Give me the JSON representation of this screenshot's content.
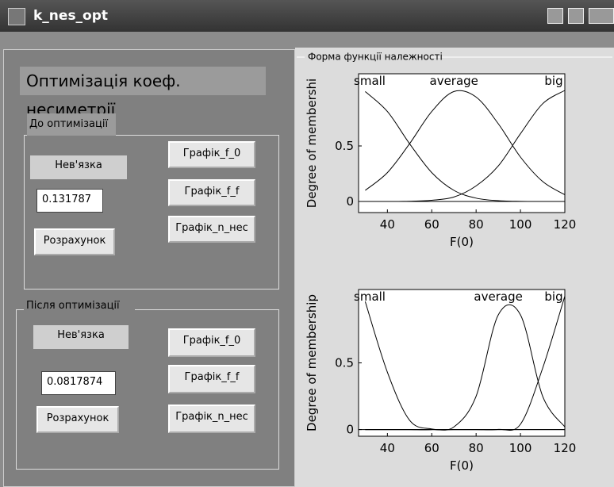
{
  "window": {
    "title": "k_nes_opt"
  },
  "header": "Оптимізація коеф. несиметрії",
  "before": {
    "title": "До оптимізації",
    "label": "Нев'язка",
    "value": "0.131787",
    "calc": "Розрахунок",
    "buttons": [
      "Графік_f_0",
      "Графік_f_f",
      "Графік_n_нес"
    ]
  },
  "after": {
    "title": "Після оптимізації",
    "label": "Нев'язка",
    "value": "0.0817874",
    "calc": "Розрахунок",
    "buttons": [
      "Графік_f_0",
      "Графік_f_f",
      "Графік_n_нес"
    ]
  },
  "plots_title": "Форма функції належності",
  "chart_data": [
    {
      "type": "line",
      "ylabel": "Degree of membershi",
      "xlabel": "F(0)",
      "x": [
        30,
        40,
        50,
        60,
        70,
        80,
        90,
        100,
        110,
        120
      ],
      "series": [
        {
          "name": "small",
          "color": "#000000",
          "values": [
            0.99,
            0.81,
            0.52,
            0.26,
            0.1,
            0.03,
            0.007,
            0.001,
            0,
            0
          ]
        },
        {
          "name": "average",
          "color": "#000000",
          "values": [
            0.1,
            0.26,
            0.52,
            0.81,
            0.99,
            0.94,
            0.7,
            0.4,
            0.18,
            0.06
          ]
        },
        {
          "name": "big",
          "color": "#000000",
          "values": [
            0,
            0,
            0.002,
            0.011,
            0.04,
            0.14,
            0.32,
            0.61,
            0.88,
            1
          ]
        }
      ],
      "xlim": [
        27,
        120
      ],
      "ylim": [
        -0.1,
        1.15
      ],
      "xticks": [
        40,
        60,
        80,
        100,
        120
      ],
      "yticks": [
        0,
        0.5
      ]
    },
    {
      "type": "line",
      "ylabel": "Degree of membership",
      "xlabel": "F(0)",
      "x": [
        30,
        40,
        50,
        60,
        70,
        80,
        90,
        100,
        110,
        120
      ],
      "series": [
        {
          "name": "small",
          "color": "#000000",
          "values": [
            0.96,
            0.43,
            0.07,
            0.004,
            0,
            0,
            0,
            0,
            0,
            0
          ]
        },
        {
          "name": "average",
          "color": "#000000",
          "values": [
            0,
            0,
            0,
            0,
            0.02,
            0.25,
            0.86,
            0.86,
            0.25,
            0.02
          ]
        },
        {
          "name": "big",
          "color": "#000000",
          "values": [
            0,
            0,
            0,
            0,
            0,
            0,
            0.001,
            0.04,
            0.46,
            1
          ]
        }
      ],
      "xlim": [
        27,
        120
      ],
      "ylim": [
        -0.05,
        1.05
      ],
      "xticks": [
        40,
        60,
        80,
        100,
        120
      ],
      "yticks": [
        0,
        0.5
      ]
    }
  ]
}
